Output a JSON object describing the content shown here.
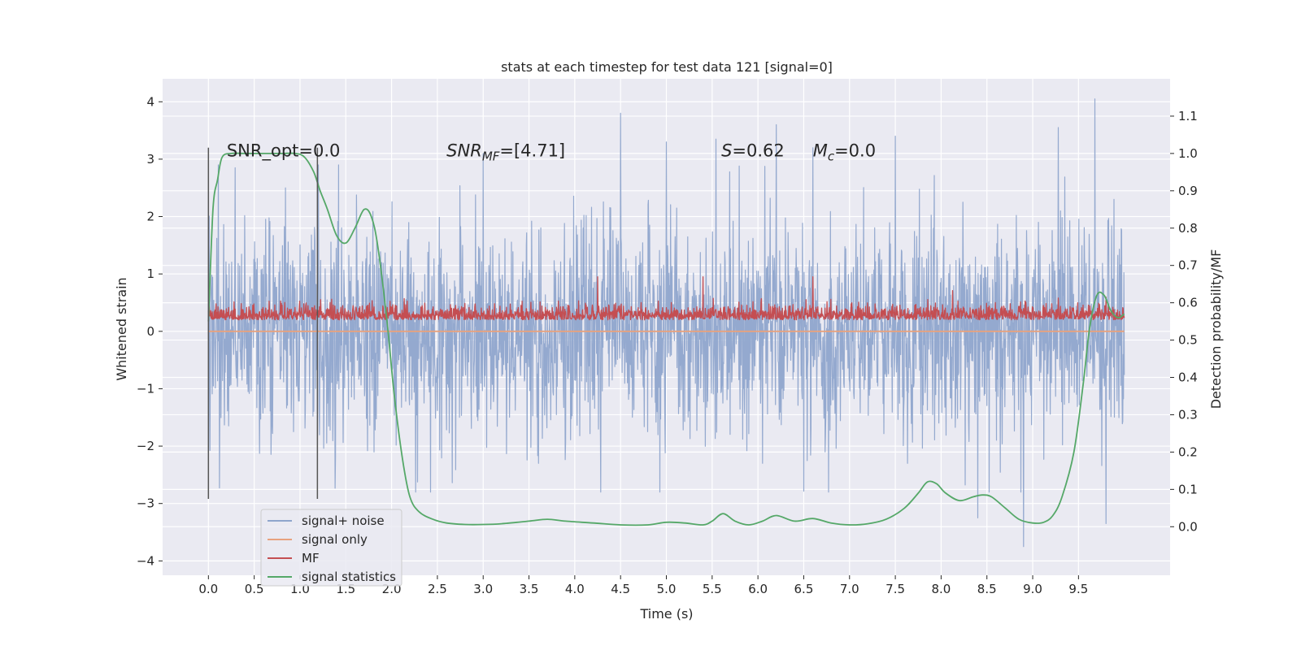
{
  "chart_data": {
    "type": "line",
    "title": "stats at each timestep for test data 121 [signal=0]",
    "xlabel": "Time (s)",
    "ylabel": "Whitened strain",
    "y2label": "Detection probability/MF",
    "xlim": [
      -0.5,
      10.5
    ],
    "ylim": [
      -4.25,
      4.4
    ],
    "y2lim": [
      -0.13,
      1.2
    ],
    "xticks": [
      0.0,
      0.5,
      1.0,
      1.5,
      2.0,
      2.5,
      3.0,
      3.5,
      4.0,
      4.5,
      5.0,
      5.5,
      6.0,
      6.5,
      7.0,
      7.5,
      8.0,
      8.5,
      9.0,
      9.5
    ],
    "xtick_labels": [
      "0.0",
      "0.5",
      "1.0",
      "1.5",
      "2.0",
      "2.5",
      "3.0",
      "3.5",
      "4.0",
      "4.5",
      "5.0",
      "5.5",
      "6.0",
      "6.5",
      "7.0",
      "7.5",
      "8.0",
      "8.5",
      "9.0",
      "9.5"
    ],
    "yticks": [
      -4,
      -3,
      -2,
      -1,
      0,
      1,
      2,
      3,
      4
    ],
    "ytick_labels": [
      "−4",
      "−3",
      "−2",
      "−1",
      "0",
      "1",
      "2",
      "3",
      "4"
    ],
    "y2ticks": [
      0.0,
      0.1,
      0.2,
      0.3,
      0.4,
      0.5,
      0.6,
      0.7,
      0.8,
      0.9,
      1.0,
      1.1
    ],
    "y2tick_labels": [
      "0.0",
      "0.1",
      "0.2",
      "0.3",
      "0.4",
      "0.5",
      "0.6",
      "0.7",
      "0.8",
      "0.9",
      "1.0",
      "1.1"
    ],
    "grid": true,
    "legend_position": "lower-left",
    "annotations": [
      {
        "text": "SNR_opt=0.0",
        "x": 0.2,
        "y": 3.15
      },
      {
        "text": "SNR",
        "sub": "MF",
        "suffix": "=[4.71]",
        "italic": true,
        "x": 2.6,
        "y": 3.15
      },
      {
        "text": "S",
        "sub": "",
        "suffix": "=0.62",
        "italic": true,
        "x": 5.6,
        "y": 3.15
      },
      {
        "text": "M",
        "sub": "c",
        "suffix": "=0.0",
        "italic": true,
        "x": 6.6,
        "y": 3.15
      }
    ],
    "vlines": [
      {
        "x": 0.0,
        "ymin": -2.92,
        "ymax": 3.2
      },
      {
        "x": 1.19,
        "ymin": -2.92,
        "ymax": 3.2
      }
    ],
    "series": [
      {
        "name": "signal+ noise",
        "axis": "left",
        "color": "#8fa5cc",
        "x_range": [
          0.0,
          10.0
        ],
        "amplitude": 0.9,
        "peaks_x": [
          0.29,
          1.2,
          3.0,
          4.5,
          5.0,
          5.54,
          6.2,
          6.6,
          7.5,
          8.4,
          8.9,
          9.28,
          9.68,
          9.8
        ],
        "peaks_y": [
          2.85,
          2.9,
          3.1,
          3.8,
          3.3,
          3.35,
          3.6,
          3.2,
          3.4,
          -3.25,
          -3.75,
          3.55,
          4.05,
          -3.35
        ]
      },
      {
        "name": "signal only",
        "axis": "left",
        "color": "#e8a27e",
        "x": [
          0.0,
          10.0
        ],
        "y": [
          0.0,
          0.0
        ]
      },
      {
        "name": "MF",
        "axis": "left",
        "color": "#c44e52",
        "x_range": [
          0.0,
          10.0
        ],
        "baseline": 0.25,
        "amplitude": 0.12,
        "peaks_x": [
          4.25,
          5.4,
          6.6
        ],
        "peaks_y": [
          0.95,
          0.95,
          0.95
        ]
      },
      {
        "name": "signal statistics",
        "axis": "right",
        "color": "#55a868",
        "x": [
          0.0,
          0.05,
          0.1,
          0.15,
          0.25,
          0.4,
          0.6,
          0.8,
          0.95,
          1.05,
          1.15,
          1.22,
          1.3,
          1.4,
          1.5,
          1.6,
          1.7,
          1.78,
          1.85,
          1.95,
          2.03,
          2.12,
          2.2,
          2.3,
          2.45,
          2.6,
          2.8,
          3.0,
          3.2,
          3.5,
          3.7,
          3.9,
          4.2,
          4.5,
          4.8,
          5.0,
          5.2,
          5.4,
          5.5,
          5.62,
          5.75,
          5.9,
          6.05,
          6.2,
          6.4,
          6.6,
          6.8,
          7.0,
          7.2,
          7.4,
          7.6,
          7.75,
          7.85,
          7.95,
          8.05,
          8.2,
          8.35,
          8.45,
          8.55,
          8.7,
          8.85,
          9.0,
          9.12,
          9.22,
          9.32,
          9.45,
          9.55,
          9.62,
          9.7,
          9.78,
          9.85,
          9.93,
          10.0
        ],
        "y": [
          0.55,
          0.85,
          0.93,
          0.99,
          1.0,
          1.0,
          1.0,
          1.0,
          1.0,
          0.99,
          0.95,
          0.9,
          0.85,
          0.78,
          0.76,
          0.8,
          0.85,
          0.83,
          0.75,
          0.55,
          0.35,
          0.18,
          0.08,
          0.04,
          0.02,
          0.01,
          0.006,
          0.006,
          0.008,
          0.015,
          0.02,
          0.015,
          0.01,
          0.005,
          0.005,
          0.012,
          0.01,
          0.005,
          0.015,
          0.035,
          0.015,
          0.005,
          0.015,
          0.03,
          0.015,
          0.022,
          0.01,
          0.005,
          0.008,
          0.02,
          0.05,
          0.09,
          0.12,
          0.115,
          0.09,
          0.07,
          0.08,
          0.085,
          0.08,
          0.05,
          0.02,
          0.01,
          0.012,
          0.03,
          0.08,
          0.2,
          0.38,
          0.53,
          0.62,
          0.62,
          0.58,
          0.56,
          0.57
        ]
      }
    ]
  }
}
